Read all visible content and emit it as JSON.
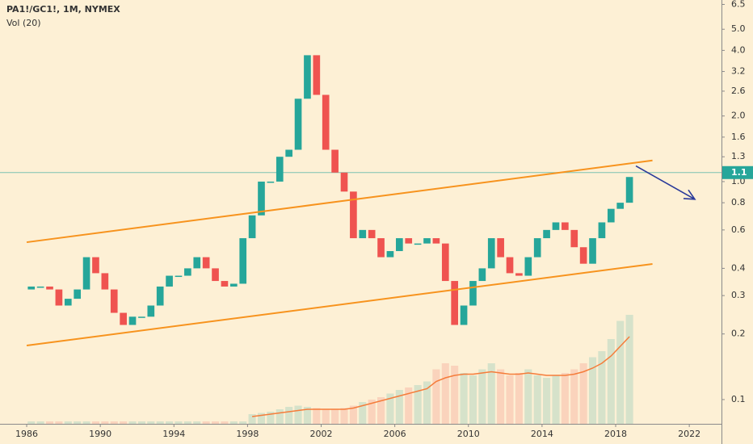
{
  "chart_data": {
    "type": "candlestick",
    "title": "PA1!/GC1!, 1M, NYMEX",
    "subtitle": "Vol (20)",
    "x": [
      1986,
      1986.5,
      1987,
      1987.5,
      1988,
      1988.5,
      1989,
      1989.5,
      1990,
      1990.5,
      1991,
      1991.5,
      1992,
      1992.5,
      1993,
      1993.5,
      1994,
      1994.5,
      1995,
      1995.5,
      1996,
      1996.5,
      1997,
      1997.5,
      1998,
      1998.5,
      1999,
      1999.5,
      2000,
      2000.5,
      2001,
      2001.5,
      2002,
      2002.5,
      2003,
      2003.5,
      2004,
      2004.5,
      2005,
      2005.5,
      2006,
      2006.5,
      2007,
      2007.5,
      2008,
      2008.5,
      2009,
      2009.5,
      2010,
      2010.5,
      2011,
      2011.5,
      2012,
      2012.5,
      2013,
      2013.5,
      2014,
      2014.5,
      2015,
      2015.5,
      2016,
      2016.5,
      2017,
      2017.5,
      2018,
      2018.5
    ],
    "open": [
      0.32,
      0.33,
      0.33,
      0.32,
      0.27,
      0.29,
      0.32,
      0.45,
      0.38,
      0.32,
      0.25,
      0.22,
      0.24,
      0.24,
      0.27,
      0.33,
      0.37,
      0.37,
      0.4,
      0.45,
      0.4,
      0.35,
      0.33,
      0.34,
      0.55,
      0.7,
      1.0,
      1.0,
      1.3,
      1.4,
      2.4,
      3.8,
      2.5,
      1.4,
      1.1,
      0.9,
      0.55,
      0.6,
      0.55,
      0.45,
      0.48,
      0.55,
      0.52,
      0.52,
      0.55,
      0.52,
      0.35,
      0.22,
      0.27,
      0.35,
      0.4,
      0.55,
      0.45,
      0.38,
      0.37,
      0.45,
      0.55,
      0.6,
      0.65,
      0.6,
      0.5,
      0.42,
      0.55,
      0.65,
      0.75,
      0.8
    ],
    "close": [
      0.33,
      0.33,
      0.32,
      0.27,
      0.29,
      0.32,
      0.45,
      0.38,
      0.32,
      0.25,
      0.22,
      0.24,
      0.24,
      0.27,
      0.33,
      0.37,
      0.37,
      0.4,
      0.45,
      0.4,
      0.35,
      0.33,
      0.34,
      0.55,
      0.7,
      1.0,
      1.0,
      1.3,
      1.4,
      2.4,
      3.8,
      2.5,
      1.4,
      1.1,
      0.9,
      0.55,
      0.6,
      0.55,
      0.45,
      0.48,
      0.55,
      0.52,
      0.52,
      0.55,
      0.52,
      0.35,
      0.22,
      0.27,
      0.35,
      0.4,
      0.55,
      0.45,
      0.38,
      0.37,
      0.45,
      0.55,
      0.6,
      0.65,
      0.6,
      0.5,
      0.42,
      0.55,
      0.65,
      0.75,
      0.8,
      1.05
    ],
    "up_color": "#26a69a",
    "down_color": "#ef5350",
    "volume": {
      "values": [
        2,
        2,
        2,
        2,
        2,
        2,
        2,
        2,
        2,
        2,
        2,
        2,
        2,
        2,
        2,
        2,
        2,
        2,
        2,
        2,
        2,
        2,
        2,
        2,
        8,
        9,
        10,
        12,
        14,
        15,
        14,
        13,
        12,
        12,
        13,
        15,
        18,
        20,
        22,
        25,
        28,
        30,
        32,
        35,
        45,
        50,
        48,
        42,
        40,
        45,
        50,
        45,
        40,
        42,
        45,
        40,
        38,
        40,
        42,
        45,
        50,
        55,
        60,
        70,
        85,
        90
      ],
      "ma": [
        null,
        null,
        null,
        null,
        null,
        null,
        null,
        null,
        null,
        null,
        null,
        null,
        null,
        null,
        null,
        null,
        null,
        null,
        null,
        null,
        null,
        null,
        null,
        null,
        6,
        7,
        8,
        9,
        10,
        11,
        12,
        12,
        12,
        12,
        12,
        13,
        15,
        17,
        19,
        21,
        23,
        25,
        27,
        29,
        35,
        38,
        40,
        41,
        41,
        42,
        43,
        42,
        41,
        41,
        42,
        41,
        40,
        40,
        40,
        41,
        43,
        46,
        50,
        56,
        64,
        72
      ],
      "ma_color": "#f57c3a",
      "lim": [
        0,
        100
      ]
    },
    "log_scale": true,
    "xlim": [
      1984.55,
      2023.75
    ],
    "xticks": [
      1986,
      1990,
      1994,
      1998,
      2002,
      2006,
      2010,
      2014,
      2018,
      2022
    ],
    "ylim": [
      0.0774,
      6.81
    ],
    "yticks": [
      0.1,
      0.2,
      0.3,
      0.4,
      0.6,
      0.8,
      {
        "value": 1,
        "label": "1.0"
      },
      1.3,
      1.6,
      {
        "value": 2,
        "label": "2.0"
      },
      2.6,
      3.2,
      {
        "value": 4,
        "label": "4.0"
      },
      {
        "value": 5,
        "label": "5.0"
      },
      6.5
    ],
    "last_price": 1.1,
    "last_price_color": "#26a69a",
    "trendlines": [
      {
        "x": [
          1986,
          2020
        ],
        "y": [
          0.527,
          1.25
        ],
        "color": "#f7931e"
      },
      {
        "x": [
          1986,
          2020
        ],
        "y": [
          0.177,
          0.419
        ],
        "color": "#f7931e"
      }
    ],
    "arrow": {
      "x": [
        2019.1,
        2022.3
      ],
      "y": [
        1.18,
        0.83
      ],
      "color": "#2a3a9a"
    }
  }
}
